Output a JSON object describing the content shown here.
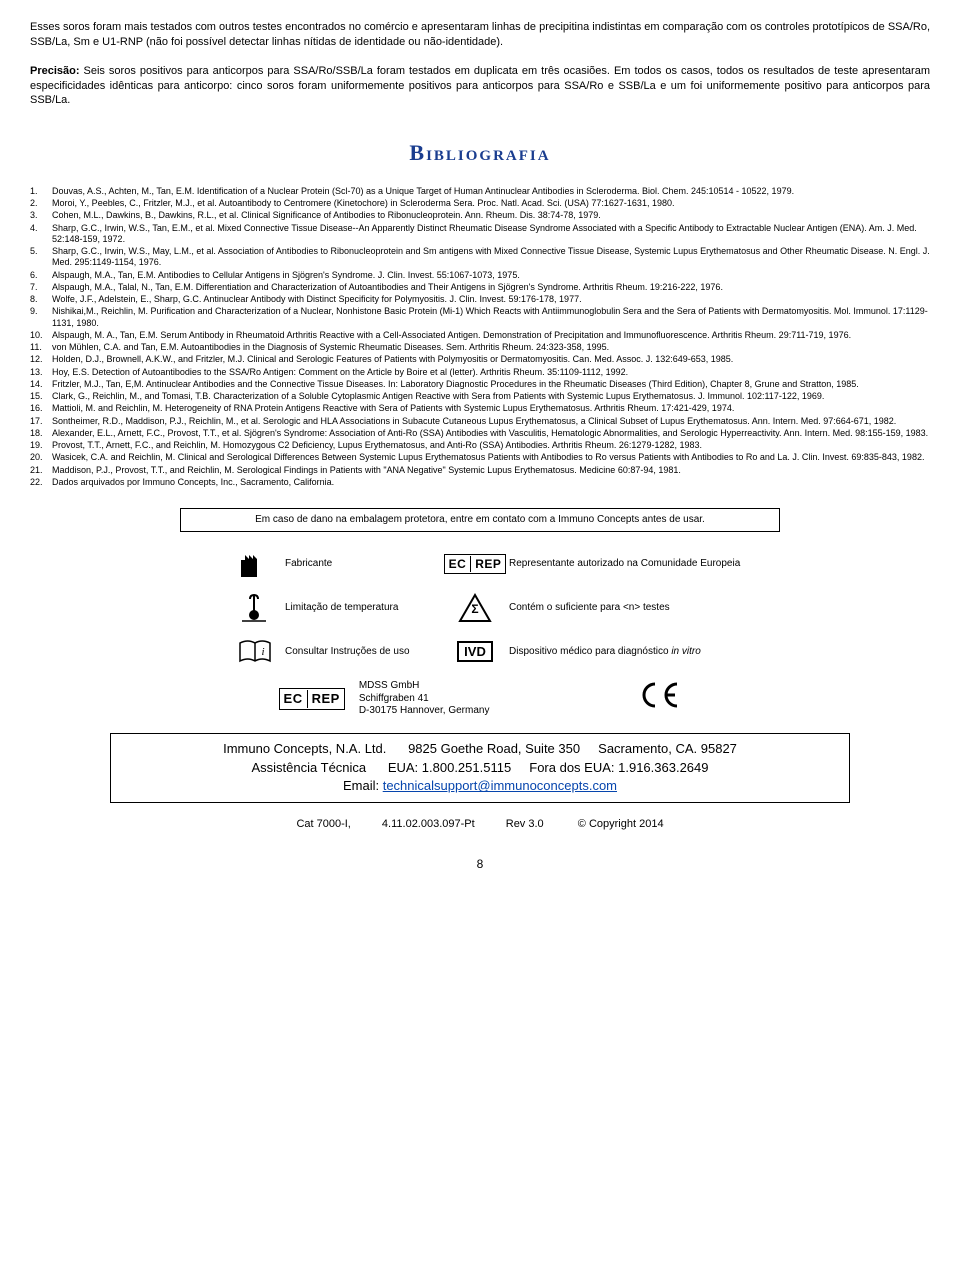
{
  "paragraphs": {
    "p1": "Esses soros foram mais testados com outros testes encontrados no comércio e apresentaram linhas de precipitina indistintas em comparação com os controles prototípicos de SSA/Ro, SSB/La, Sm e U1-RNP (não foi possível detectar linhas nítidas de identidade ou não-identidade).",
    "p2_bold": "Precisão:",
    "p2_rest": " Seis soros positivos para anticorpos para SSA/Ro/SSB/La foram testados em duplicata em três ocasiões. Em todos os casos, todos os resultados de teste apresentaram especificidades idênticas para anticorpo: cinco soros foram uniformemente positivos para anticorpos para SSA/Ro e SSB/La e um foi uniformemente positivo para anticorpos para SSB/La."
  },
  "bibHeading": "Bibliografia",
  "refs": [
    "Douvas, A.S., Achten, M., Tan, E.M.  Identification of a Nuclear Protein (Scl-70) as a Unique Target of Human Antinuclear Antibodies in Scleroderma. Biol. Chem. 245:10514 - 10522, 1979.",
    "Moroi, Y., Peebles, C., Fritzler, M.J., et al.  Autoantibody to Centromere (Kinetochore) in Scleroderma Sera. Proc. Natl. Acad. Sci. (USA) 77:1627-1631, 1980.",
    "Cohen, M.L., Dawkins, B., Dawkins, R.L., et al.  Clinical Significance of Antibodies to Ribonucleoprotein. Ann. Rheum. Dis. 38:74-78, 1979.",
    "Sharp, G.C., Irwin, W.S., Tan, E.M., et al.  Mixed Connective Tissue Disease--An Apparently Distinct Rheumatic Disease Syndrome Associated with a Specific Antibody to Extractable Nuclear Antigen (ENA). Am. J. Med. 52:148-159, 1972.",
    "Sharp, G.C., Irwin, W.S., May, L.M., et al.  Association of Antibodies to Ribonucleoprotein and Sm antigens with Mixed Connective Tissue Disease, Systemic Lupus Erythematosus and Other Rheumatic Disease.  N. Engl. J. Med. 295:1149-1154, 1976.",
    "Alspaugh, M.A., Tan, E.M.  Antibodies to Cellular Antigens in Sjögren's Syndrome.  J. Clin. Invest. 55:1067-1073, 1975.",
    "Alspaugh, M.A., Talal, N., Tan, E.M.  Differentiation and Characterization of Autoantibodies and Their Antigens in Sjögren's Syndrome. Arthritis Rheum. 19:216-222, 1976.",
    "Wolfe, J.F., Adelstein, E., Sharp, G.C.  Antinuclear Antibody with Distinct Specificity for Polymyositis. J. Clin. Invest. 59:176-178, 1977.",
    "Nishikai,M., Reichlin, M.  Purification and Characterization of a Nuclear, Nonhistone Basic Protein (Mi-1) Which Reacts with Antiimmunoglobulin Sera and the Sera of Patients with Dermatomyositis. Mol. Immunol. 17:1129-1131, 1980.",
    "Alspaugh, M. A., Tan, E.M.  Serum Antibody in Rheumatoid Arthritis Reactive with a Cell-Associated Antigen. Demonstration of Precipitation and Immunofluorescence. Arthritis Rheum. 29:711-719, 1976.",
    "von Mühlen, C.A. and Tan, E.M.  Autoantibodies in the Diagnosis of Systemic Rheumatic Diseases.  Sem. Arthritis Rheum. 24:323-358, 1995.",
    "Holden, D.J., Brownell, A.K.W., and Fritzler, M.J.  Clinical and Serologic Features of Patients with Polymyositis or Dermatomyositis.  Can. Med. Assoc. J.  132:649-653, 1985.",
    "Hoy, E.S.  Detection of Autoantibodies to the SSA/Ro Antigen: Comment on the Article by Boire et al (letter).  Arthritis Rheum.  35:1109-1112, 1992.",
    "Fritzler, M.J., Tan, E,M. Antinuclear Antibodies and the Connective Tissue Diseases. In: Laboratory Diagnostic Procedures in the Rheumatic Diseases (Third Edition), Chapter 8, Grune and Stratton, 1985.",
    "Clark, G., Reichlin, M., and Tomasi, T.B.  Characterization of a Soluble Cytoplasmic Antigen Reactive with Sera from Patients with Systemic Lupus Erythematosus.  J. Immunol. 102:117-122, 1969.",
    "Mattioli, M. and Reichlin, M.  Heterogeneity of RNA Protein Antigens Reactive with Sera of Patients with Systemic Lupus Erythematosus.  Arthritis Rheum.  17:421-429, 1974.",
    "Sontheimer, R.D., Maddison, P.J., Reichlin, M., et al.  Serologic and HLA Associations in Subacute Cutaneous Lupus Erythematosus, a Clinical Subset of Lupus Erythematosus.  Ann. Intern. Med.  97:664-671, 1982.",
    "Alexander, E.L., Arnett, F.C., Provost, T.T., et al.  Sjögren's Syndrome: Association of Anti-Ro (SSA) Antibodies with Vasculitis, Hematologic Abnormalities, and Serologic Hyperreactivity.  Ann. Intern. Med.  98:155-159, 1983.",
    "Provost, T.T., Arnett, F.C., and Reichlin, M.  Homozygous C2 Deficiency, Lupus Erythematosus, and Anti-Ro (SSA) Antibodies.  Arthritis Rheum.  26:1279-1282, 1983.",
    "Wasicek, C.A. and Reichlin, M.  Clinical and Serological Differences Between Systemic Lupus Erythematosus Patients with Antibodies to Ro versus Patients with Antibodies to Ro and La.  J. Clin. Invest.  69:835-843, 1982.",
    "Maddison, P.J., Provost, T.T., and Reichlin, M.  Serological Findings in Patients with \"ANA Negative\" Systemic Lupus Erythematosus.  Medicine  60:87-94, 1981.",
    "Dados arquivados por Immuno Concepts, Inc., Sacramento, California."
  ],
  "notice": "Em caso de dano na embalagem protetora, entre em contato com a Immuno Concepts antes de usar.",
  "symbols": {
    "fabricante": "Fabricante",
    "ecrep": "Representante autorizado na Comunidade Europeia",
    "temp": "Limitação de temperatura",
    "sigma": "Contém o suficiente para <n> testes",
    "consultar": "Consultar Instruções de uso",
    "ivd": "Dispositivo médico para diagnóstico ",
    "ivd_italic": "in vitro"
  },
  "mdss": {
    "line1": "MDSS GmbH",
    "line2": "Schiffgraben 41",
    "line3": "D-30175 Hannover, Germany"
  },
  "footer": {
    "line1a": "Immuno Concepts, N.A. Ltd.",
    "line1b": "9825 Goethe Road, Suite 350",
    "line1c": "Sacramento, CA. 95827",
    "line2a": "Assistência Técnica",
    "line2b": "EUA: 1.800.251.5115",
    "line2c": "Fora dos EUA: 1.916.363.2649",
    "email_label": "Email: ",
    "email": "technicalsupport@immunoconcepts.com"
  },
  "cat": {
    "a": "Cat 7000-I,",
    "b": "4.11.02.003.097-Pt",
    "c": "Rev 3.0",
    "d": "© Copyright 2014"
  },
  "pageNum": "8"
}
